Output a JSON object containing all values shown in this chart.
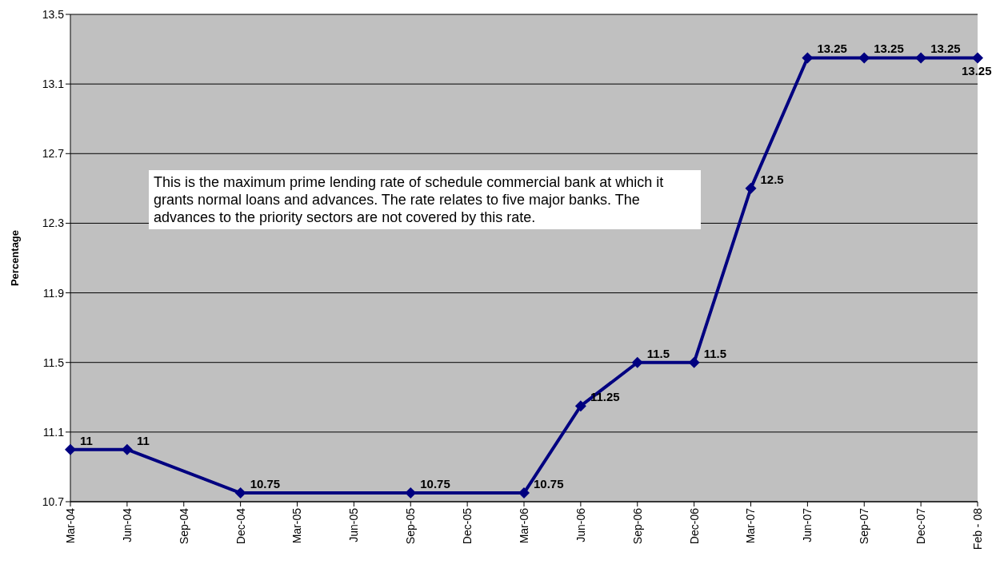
{
  "chart_data": {
    "type": "line",
    "ylabel": "Percentage",
    "categories": [
      "Mar-04",
      "Jun-04",
      "Sep-04",
      "Dec-04",
      "Mar-05",
      "Jun-05",
      "Sep-05",
      "Dec-05",
      "Mar-06",
      "Jun-06",
      "Sep-06",
      "Dec-06",
      "Mar-07",
      "Jun-07",
      "Sep-07",
      "Dec-07",
      "Feb - 08"
    ],
    "series": [
      {
        "color": "#000080",
        "values": [
          11,
          11,
          null,
          10.75,
          null,
          null,
          10.75,
          null,
          10.75,
          11.25,
          11.5,
          11.5,
          12.5,
          13.25,
          13.25,
          13.25,
          13.25
        ]
      }
    ],
    "ylim": [
      10.7,
      13.5
    ],
    "yticks": [
      10.7,
      11.1,
      11.5,
      11.9,
      12.3,
      12.7,
      13.1,
      13.5
    ],
    "grid": "y",
    "marker": "diamond",
    "line_style": "solid",
    "data_labels": true,
    "legend": false,
    "annotations": [
      "This is the maximum prime lending rate of schedule commercial bank at which it grants normal loans and advances. The rate relates to five major banks. The advances to the priority sectors are not covered by this rate."
    ]
  }
}
